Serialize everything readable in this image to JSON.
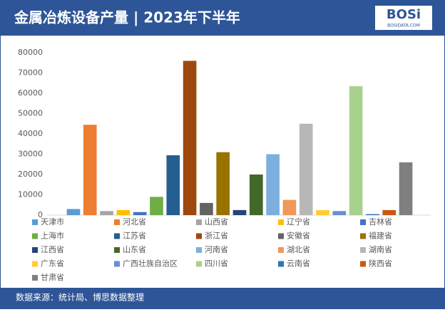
{
  "header": {
    "title": "金属冶炼设备产量 | 2023年下半年",
    "logo": "BOSi",
    "logo_sub": "BOSIDATA.COM"
  },
  "footer": {
    "source": "数据来源：统计局、博思数据整理"
  },
  "chart_data": {
    "type": "bar",
    "categories": [
      null
    ],
    "ylim": [
      0,
      80000
    ],
    "yticks": [
      0,
      10000,
      20000,
      30000,
      40000,
      50000,
      60000,
      70000,
      80000
    ],
    "grid": false,
    "legend": "bottom",
    "series": [
      {
        "name": "天津市",
        "color": "#5b9bd5",
        "values": [
          3000
        ]
      },
      {
        "name": "河北省",
        "color": "#ed7d31",
        "values": [
          44500
        ]
      },
      {
        "name": "山西省",
        "color": "#a5a5a5",
        "values": [
          2000
        ]
      },
      {
        "name": "辽宁省",
        "color": "#ffc000",
        "values": [
          2500
        ]
      },
      {
        "name": "吉林省",
        "color": "#4472c4",
        "values": [
          1500
        ]
      },
      {
        "name": "上海市",
        "color": "#70ad47",
        "values": [
          9000
        ]
      },
      {
        "name": "江苏省",
        "color": "#255e91",
        "values": [
          29500
        ]
      },
      {
        "name": "浙江省",
        "color": "#9e480e",
        "values": [
          76000
        ]
      },
      {
        "name": "安徽省",
        "color": "#636363",
        "values": [
          6000
        ]
      },
      {
        "name": "福建省",
        "color": "#997300",
        "values": [
          31000
        ]
      },
      {
        "name": "江西省",
        "color": "#264478",
        "values": [
          2500
        ]
      },
      {
        "name": "山东省",
        "color": "#43682b",
        "values": [
          20000
        ]
      },
      {
        "name": "河南省",
        "color": "#7cafdd",
        "values": [
          30000
        ]
      },
      {
        "name": "湖北省",
        "color": "#f1975a",
        "values": [
          7500
        ]
      },
      {
        "name": "湖南省",
        "color": "#b7b7b7",
        "values": [
          45000
        ]
      },
      {
        "name": "广东省",
        "color": "#ffcd33",
        "values": [
          2500
        ]
      },
      {
        "name": "广西壮族自治区",
        "color": "#698ed0",
        "values": [
          2000
        ]
      },
      {
        "name": "四川省",
        "color": "#a9d18e",
        "values": [
          63500
        ]
      },
      {
        "name": "云南省",
        "color": "#2e75b6",
        "values": [
          500
        ]
      },
      {
        "name": "陕西省",
        "color": "#c55a11",
        "values": [
          2500
        ]
      },
      {
        "name": "甘肃省",
        "color": "#7f7f7f",
        "values": [
          26000
        ]
      }
    ]
  }
}
